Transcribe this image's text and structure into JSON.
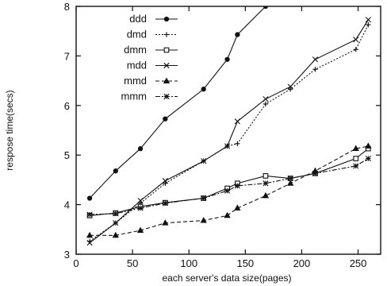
{
  "chart_data": {
    "type": "line",
    "title": "",
    "xlabel": "each server's data size(pages)",
    "ylabel": "respose time(secs)",
    "xlim": [
      0,
      270
    ],
    "ylim": [
      3,
      8
    ],
    "xticks": [
      0,
      50,
      100,
      150,
      200,
      250
    ],
    "yticks": [
      3,
      4,
      5,
      6,
      7,
      8
    ],
    "legend_position": "top-left",
    "grid": false,
    "series": [
      {
        "name": "ddd",
        "marker": "circle",
        "dash": "solid",
        "x": [
          12,
          35,
          57,
          79,
          113,
          134,
          143,
          168
        ],
        "y": [
          4.13,
          4.68,
          5.13,
          5.73,
          6.33,
          6.93,
          7.43,
          8.0
        ]
      },
      {
        "name": "dmd",
        "marker": "plus",
        "dash": "dotted",
        "x": [
          12,
          35,
          57,
          79,
          113,
          134,
          143,
          168,
          190,
          212,
          248,
          259
        ],
        "y": [
          3.26,
          3.63,
          4.03,
          4.43,
          4.88,
          5.18,
          5.23,
          6.03,
          6.33,
          6.73,
          7.13,
          7.63
        ]
      },
      {
        "name": "dmm",
        "marker": "square",
        "dash": "solid",
        "x": [
          12,
          35,
          57,
          79,
          113,
          134,
          143,
          168,
          190,
          212,
          248,
          259
        ],
        "y": [
          3.78,
          3.83,
          3.96,
          4.04,
          4.13,
          4.33,
          4.43,
          4.58,
          4.53,
          4.63,
          4.93,
          5.13
        ]
      },
      {
        "name": "mdd",
        "marker": "cross",
        "dash": "solid",
        "x": [
          12,
          35,
          57,
          79,
          113,
          134,
          143,
          168,
          190,
          212,
          248,
          259
        ],
        "y": [
          3.23,
          3.63,
          4.08,
          4.48,
          4.88,
          5.18,
          5.68,
          6.13,
          6.38,
          6.93,
          7.33,
          7.73
        ]
      },
      {
        "name": "mmd",
        "marker": "triangle",
        "dash": "dashed",
        "x": [
          12,
          35,
          57,
          79,
          113,
          134,
          143,
          168,
          190,
          212,
          248,
          259
        ],
        "y": [
          3.38,
          3.38,
          3.48,
          3.63,
          3.68,
          3.78,
          3.93,
          4.18,
          4.43,
          4.68,
          5.13,
          5.18
        ]
      },
      {
        "name": "mmm",
        "marker": "star",
        "dash": "dashdot",
        "x": [
          12,
          35,
          57,
          79,
          113,
          134,
          143,
          168,
          190,
          212,
          248,
          259
        ],
        "y": [
          3.8,
          3.82,
          3.93,
          4.03,
          4.13,
          4.28,
          4.38,
          4.43,
          4.53,
          4.63,
          4.78,
          4.93
        ]
      }
    ]
  }
}
